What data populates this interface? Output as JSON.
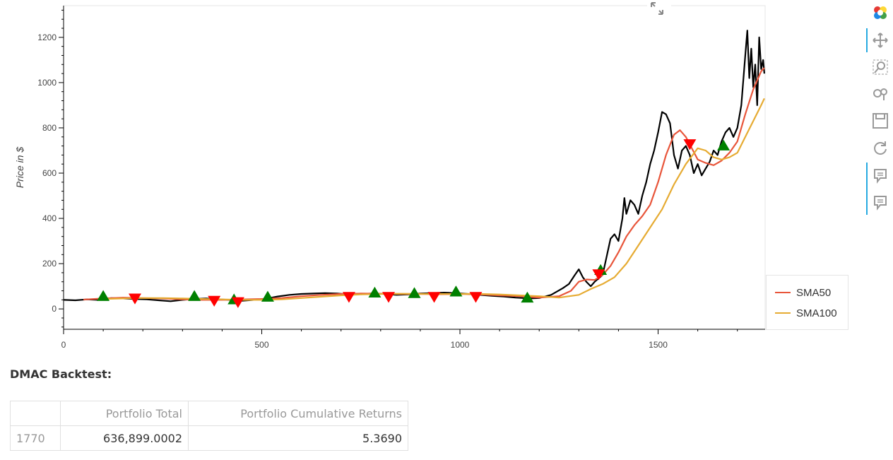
{
  "chart_data": {
    "type": "line",
    "title": "",
    "xlabel": "",
    "ylabel": "Price in $",
    "xlim": [
      0,
      1770
    ],
    "ylim": [
      -90,
      1340
    ],
    "xticks": [
      0,
      500,
      1000,
      1500
    ],
    "yticks": [
      0,
      200,
      400,
      600,
      800,
      1000,
      1200
    ],
    "grid": false,
    "legend_position": "right",
    "series": [
      {
        "name": "",
        "color": "#000000",
        "x": [
          0,
          30,
          60,
          90,
          120,
          150,
          180,
          210,
          240,
          270,
          300,
          330,
          360,
          390,
          420,
          450,
          480,
          510,
          540,
          570,
          600,
          630,
          660,
          690,
          720,
          750,
          780,
          810,
          840,
          870,
          900,
          930,
          960,
          990,
          1020,
          1050,
          1080,
          1110,
          1140,
          1160,
          1175,
          1200,
          1230,
          1260,
          1275,
          1290,
          1300,
          1310,
          1320,
          1330,
          1340,
          1350,
          1360,
          1370,
          1380,
          1390,
          1400,
          1410,
          1415,
          1420,
          1430,
          1440,
          1450,
          1460,
          1470,
          1480,
          1490,
          1500,
          1510,
          1520,
          1530,
          1540,
          1550,
          1560,
          1570,
          1580,
          1590,
          1600,
          1610,
          1620,
          1630,
          1640,
          1650,
          1660,
          1670,
          1680,
          1690,
          1700,
          1710,
          1720,
          1725,
          1730,
          1735,
          1740,
          1745,
          1750,
          1755,
          1760,
          1765,
          1768
        ],
        "y": [
          40,
          38,
          42,
          40,
          48,
          46,
          44,
          42,
          38,
          34,
          40,
          44,
          46,
          42,
          40,
          36,
          40,
          45,
          55,
          62,
          66,
          68,
          70,
          68,
          64,
          66,
          68,
          66,
          62,
          64,
          68,
          70,
          72,
          70,
          66,
          62,
          58,
          55,
          50,
          48,
          46,
          48,
          62,
          92,
          110,
          150,
          175,
          140,
          118,
          100,
          120,
          135,
          150,
          230,
          310,
          330,
          300,
          400,
          490,
          420,
          480,
          460,
          420,
          500,
          560,
          640,
          700,
          780,
          870,
          860,
          820,
          680,
          620,
          700,
          720,
          680,
          600,
          640,
          590,
          620,
          650,
          700,
          680,
          740,
          780,
          800,
          760,
          800,
          900,
          1120,
          1230,
          1020,
          1150,
          980,
          1080,
          900,
          1200,
          1060,
          1100,
          1040
        ]
      },
      {
        "name": "SMA50",
        "color": "#e8553a",
        "x": [
          50,
          100,
          150,
          200,
          250,
          300,
          350,
          400,
          450,
          500,
          550,
          600,
          650,
          700,
          750,
          800,
          850,
          900,
          950,
          1000,
          1050,
          1100,
          1150,
          1200,
          1250,
          1280,
          1300,
          1320,
          1340,
          1360,
          1380,
          1400,
          1420,
          1440,
          1460,
          1480,
          1500,
          1520,
          1540,
          1555,
          1570,
          1585,
          1600,
          1620,
          1640,
          1660,
          1680,
          1700,
          1720,
          1740,
          1760,
          1768
        ],
        "y": [
          41,
          46,
          50,
          48,
          46,
          42,
          40,
          40,
          42,
          44,
          48,
          56,
          62,
          66,
          68,
          67,
          66,
          66,
          65,
          66,
          64,
          60,
          56,
          50,
          56,
          80,
          120,
          130,
          128,
          150,
          190,
          250,
          320,
          370,
          410,
          460,
          560,
          680,
          770,
          790,
          760,
          710,
          660,
          645,
          635,
          655,
          690,
          740,
          860,
          970,
          1050,
          1065
        ]
      },
      {
        "name": "SMA100",
        "color": "#e6ab32",
        "x": [
          100,
          150,
          200,
          250,
          300,
          350,
          400,
          450,
          500,
          550,
          600,
          650,
          700,
          750,
          800,
          850,
          900,
          950,
          1000,
          1050,
          1100,
          1150,
          1200,
          1250,
          1300,
          1330,
          1360,
          1390,
          1420,
          1450,
          1480,
          1510,
          1540,
          1570,
          1600,
          1620,
          1640,
          1660,
          1680,
          1700,
          1720,
          1740,
          1760,
          1768
        ],
        "y": [
          44,
          46,
          48,
          48,
          46,
          44,
          42,
          40,
          40,
          42,
          48,
          54,
          60,
          64,
          66,
          67,
          66,
          66,
          66,
          66,
          64,
          60,
          56,
          50,
          62,
          88,
          110,
          140,
          200,
          280,
          360,
          440,
          550,
          640,
          710,
          700,
          670,
          660,
          670,
          690,
          760,
          830,
          900,
          930
        ]
      }
    ],
    "signals": {
      "buy": [
        {
          "x": 100,
          "y": 55
        },
        {
          "x": 330,
          "y": 55
        },
        {
          "x": 430,
          "y": 40
        },
        {
          "x": 515,
          "y": 52
        },
        {
          "x": 785,
          "y": 70
        },
        {
          "x": 885,
          "y": 68
        },
        {
          "x": 990,
          "y": 75
        },
        {
          "x": 1170,
          "y": 48
        },
        {
          "x": 1355,
          "y": 170
        },
        {
          "x": 1665,
          "y": 720
        }
      ],
      "sell": [
        {
          "x": 180,
          "y": 48
        },
        {
          "x": 380,
          "y": 38
        },
        {
          "x": 440,
          "y": 32
        },
        {
          "x": 720,
          "y": 55
        },
        {
          "x": 820,
          "y": 55
        },
        {
          "x": 935,
          "y": 55
        },
        {
          "x": 1040,
          "y": 55
        },
        {
          "x": 1350,
          "y": 155
        },
        {
          "x": 1580,
          "y": 730
        }
      ],
      "buy_color": "#008000",
      "sell_color": "#ff0000"
    }
  },
  "legend": {
    "items": [
      {
        "label": "SMA50",
        "color": "#e8553a"
      },
      {
        "label": "SMA100",
        "color": "#e6ab32"
      }
    ]
  },
  "toolbar": {
    "items": [
      "bokeh-logo-icon",
      "pan-icon",
      "box-zoom-icon",
      "wheel-zoom-icon",
      "save-icon",
      "reset-icon",
      "hover-icon",
      "hover-icon-2"
    ]
  },
  "backtest": {
    "title": "DMAC Backtest:",
    "columns": [
      "",
      "Portfolio Total",
      "Portfolio Cumulative Returns"
    ],
    "rows": [
      {
        "index": "1770",
        "total": "636,899.0002",
        "returns": "5.3690"
      }
    ]
  }
}
